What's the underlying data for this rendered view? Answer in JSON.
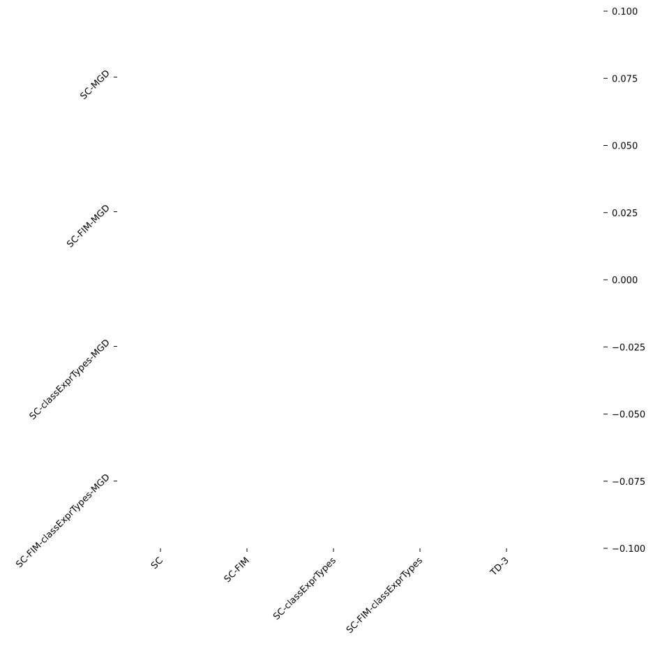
{
  "chart_data": {
    "type": "heatmap",
    "title": "",
    "xlabel": "",
    "ylabel": "",
    "x_categories": [
      "SC",
      "SC-FIM",
      "SC-classExprTypes",
      "SC-FIM-classExprTypes",
      "TD-3"
    ],
    "y_categories": [
      "SC-MGD",
      "SC-FIM-MGD",
      "SC-classExprTypes-MGD",
      "SC-FIM-classExprTypes-MGD"
    ],
    "values": [
      [
        null,
        null,
        null,
        null,
        null
      ],
      [
        null,
        null,
        null,
        null,
        null
      ],
      [
        null,
        null,
        null,
        null,
        null
      ],
      [
        null,
        null,
        null,
        null,
        null
      ]
    ],
    "colorbar": {
      "range": [
        -0.1,
        0.1
      ],
      "ticks": [
        -0.1,
        -0.075,
        -0.05,
        -0.025,
        0.0,
        0.025,
        0.05,
        0.075,
        0.1
      ],
      "tick_labels": [
        "−0.100",
        "−0.075",
        "−0.050",
        "−0.025",
        "0.000",
        "0.025",
        "0.050",
        "0.075",
        "0.100"
      ]
    },
    "grid": false,
    "x_tick_rotation_deg": 45,
    "y_tick_rotation_deg": 45
  }
}
